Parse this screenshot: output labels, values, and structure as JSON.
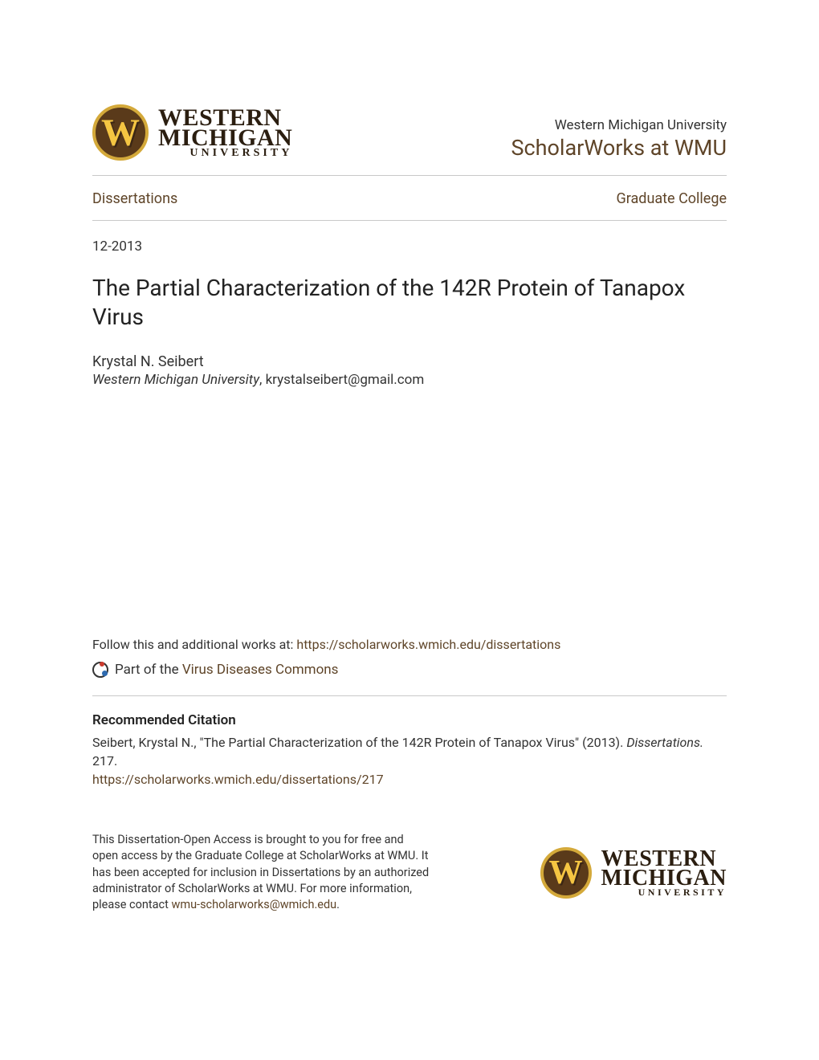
{
  "colors": {
    "link": "#5f4529",
    "text": "#333333",
    "title": "#222222",
    "rule": "#c9c9c9",
    "logo_bg": "#5a3a1a",
    "logo_ring": "#d4a93a",
    "logo_letter": "#f5c542",
    "background": "#ffffff"
  },
  "header": {
    "logo": {
      "letter": "W",
      "line1": "WESTERN",
      "line2": "MICHIGAN",
      "line3": "UNIVERSITY"
    },
    "university": "Western Michigan University",
    "site": "ScholarWorks at WMU"
  },
  "nav": {
    "left": "Dissertations",
    "right": "Graduate College"
  },
  "date": "12-2013",
  "title": "The Partial Characterization of the 142R Protein of Tanapox Virus",
  "author": "Krystal N. Seibert",
  "affiliation": {
    "institution": "Western Michigan University",
    "separator": ", ",
    "email": "krystalseibert@gmail.com"
  },
  "follow": {
    "prefix": "Follow this and additional works at: ",
    "url": "https://scholarworks.wmich.edu/dissertations"
  },
  "partof": {
    "prefix": "Part of the ",
    "commons": "Virus Diseases Commons"
  },
  "citation": {
    "heading": "Recommended Citation",
    "text_before_series": "Seibert, Krystal N., \"The Partial Characterization of the 142R Protein of Tanapox Virus\" (2013). ",
    "series": "Dissertations.",
    "text_after_series": " 217.",
    "url": "https://scholarworks.wmich.edu/dissertations/217"
  },
  "footer": {
    "text_before_link": "This Dissertation-Open Access is brought to you for free and open access by the Graduate College at ScholarWorks at WMU. It has been accepted for inclusion in Dissertations by an authorized administrator of ScholarWorks at WMU. For more information, please contact ",
    "link": "wmu-scholarworks@wmich.edu",
    "text_after_link": "."
  }
}
